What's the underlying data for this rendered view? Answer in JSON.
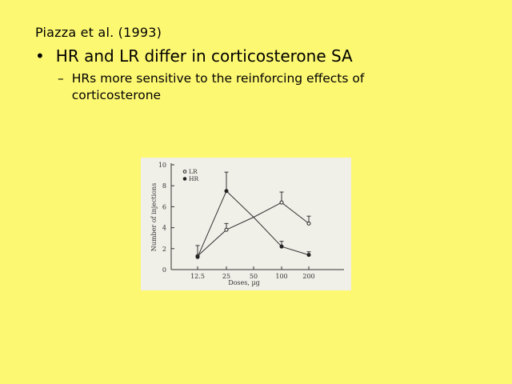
{
  "slide": {
    "citation": "Piazza et al. (1993)",
    "bullet_symbol": "•",
    "bullet": "HR and LR differ in corticosterone SA",
    "sub_symbol": "–",
    "sub_bullet": "HRs more sensitive to the reinforcing effects of corticosterone"
  },
  "colors": {
    "background": "#fdf872",
    "figure_bg": "#f0efe8"
  },
  "chart_data": {
    "type": "line",
    "categories": [
      "12.5",
      "25",
      "50",
      "100",
      "200"
    ],
    "series": [
      {
        "name": "LR",
        "marker": "open-circle",
        "values": [
          1.3,
          3.8,
          5.0,
          6.4,
          4.4
        ],
        "error": [
          1.0,
          0.6,
          0,
          1.0,
          0.7
        ],
        "error_shown": [
          true,
          true,
          false,
          true,
          true
        ]
      },
      {
        "name": "HR",
        "marker": "filled-circle",
        "values": [
          1.2,
          7.5,
          5.0,
          2.2,
          1.4
        ],
        "error": [
          0.3,
          1.8,
          0,
          0.5,
          0.3
        ],
        "error_shown": [
          false,
          true,
          false,
          true,
          true
        ]
      }
    ],
    "xlabel": "Doses, µg",
    "ylabel": "Number of injections",
    "ylim": [
      0,
      10
    ],
    "yticks": [
      "0",
      "2",
      "4",
      "6",
      "8",
      "10"
    ],
    "legend": "top-left"
  }
}
